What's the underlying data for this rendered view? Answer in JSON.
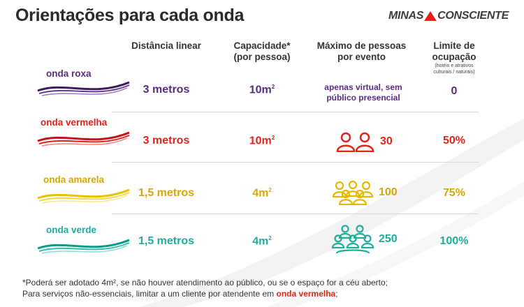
{
  "title": "Orientações para cada onda",
  "brand": {
    "left": "MINAS",
    "right": "CONSCIENTE"
  },
  "headers": {
    "distancia": "Distância linear",
    "capacidade_l1": "Capacidade*",
    "capacidade_l2": "(por pessoa)",
    "maximo_l1": "Máximo de pessoas",
    "maximo_l2": "por evento",
    "limite_l1": "Limite de",
    "limite_l2": "ocupação",
    "limite_sub1": "(hotéis e atrativos",
    "limite_sub2": "culturais / naturais)"
  },
  "rows": [
    {
      "label": "onda roxa",
      "color": "#5b2b83",
      "distancia": "3 metros",
      "capacidade": "10m",
      "cap_sup": "2",
      "maximo_l1": "apenas virtual, sem",
      "maximo_l2": "público presencial",
      "limite": "0"
    },
    {
      "label": "onda vermelha",
      "color": "#e2231a",
      "distancia": "3 metros",
      "capacidade": "10m",
      "cap_sup": "2",
      "maximo": "30",
      "icon": "two-people-icon",
      "limite": "50%"
    },
    {
      "label": "onda amarela",
      "color": "#e2b400",
      "distancia": "1,5 metros",
      "capacidade": "4m",
      "cap_sup": "2",
      "maximo": "100",
      "icon": "group-people-icon",
      "limite": "75%"
    },
    {
      "label": "onda verde",
      "color": "#1fae9a",
      "distancia": "1,5 metros",
      "capacidade": "4m",
      "cap_sup": "2",
      "maximo": "250",
      "icon": "crowd-people-icon",
      "limite": "100%"
    }
  ],
  "footnote": {
    "line1": "*Poderá ser adotado 4m², se não houver atendimento ao público, ou se o espaço for a céu aberto;",
    "line2_a": "Para serviços não-essenciais, limitar a um cliente por atendente em ",
    "line2_red": "onda vermelha",
    "line2_b": ";"
  }
}
